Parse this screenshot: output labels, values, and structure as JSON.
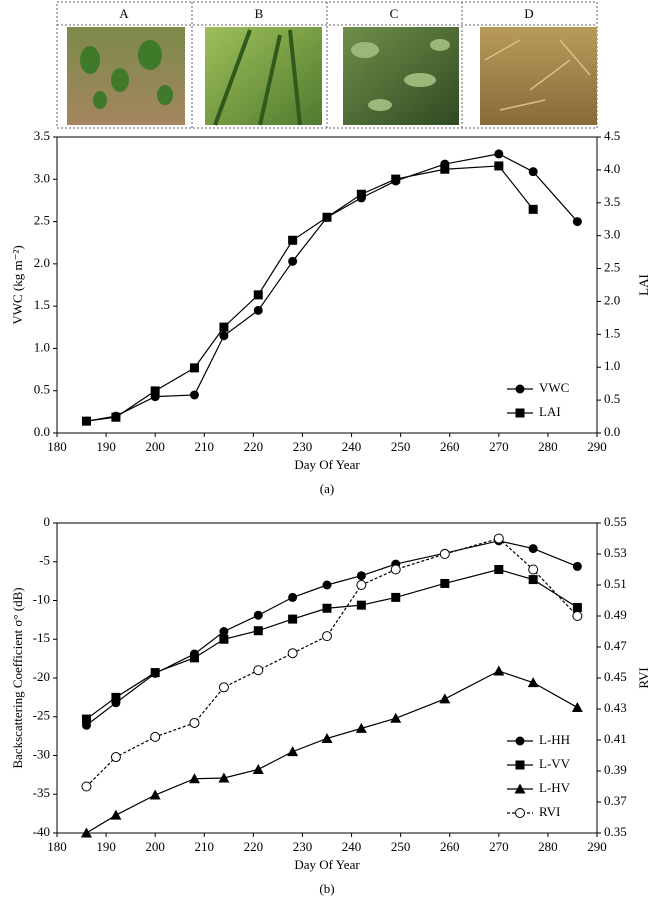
{
  "photo_panels": {
    "labels": [
      "A",
      "B",
      "C",
      "D"
    ]
  },
  "chart_data": [
    {
      "type": "line",
      "caption": "(a)",
      "x_label": "Day Of Year",
      "y_label": "VWC (kg m⁻²)",
      "y2_label": "LAI",
      "x": [
        186,
        192,
        200,
        208,
        214,
        221,
        228,
        235,
        242,
        249,
        259,
        270,
        277,
        286
      ],
      "xlim": [
        180,
        290
      ],
      "xticks": [
        180,
        190,
        200,
        210,
        220,
        230,
        240,
        250,
        260,
        270,
        280,
        290
      ],
      "ylim": [
        0,
        3.5
      ],
      "yticks": [
        {
          "value": 0,
          "label": "0.0"
        },
        0.5,
        {
          "value": 1,
          "label": "1.0"
        },
        1.5,
        {
          "value": 2,
          "label": "2.0"
        },
        2.5,
        {
          "value": 3,
          "label": "3.0"
        },
        3.5
      ],
      "y2lim": [
        0,
        4.5
      ],
      "y2ticks": [
        {
          "value": 0,
          "label": "0.0"
        },
        0.5,
        {
          "value": 1,
          "label": "1.0"
        },
        1.5,
        {
          "value": 2,
          "label": "2.0"
        },
        2.5,
        {
          "value": 3,
          "label": "3.0"
        },
        3.5,
        {
          "value": 4,
          "label": "4.0"
        },
        4.5
      ],
      "legend": "lower right",
      "series": [
        {
          "name": "VWC",
          "color": "#000000",
          "marker": "circle",
          "values": [
            0.14,
            0.2,
            0.43,
            0.45,
            1.15,
            1.45,
            2.03,
            2.55,
            2.78,
            2.98,
            3.18,
            3.3,
            3.09,
            2.5
          ]
        },
        {
          "name": "LAI",
          "color": "#000000",
          "marker": "square",
          "axis": "y2",
          "values": [
            0.18,
            0.24,
            0.64,
            0.99,
            1.61,
            2.1,
            2.93,
            3.28,
            3.63,
            3.86,
            4.01,
            4.06,
            3.4,
            null
          ]
        }
      ]
    },
    {
      "type": "line",
      "caption": "(b)",
      "x_label": "Day Of Year",
      "y_label": "Backscattering  Coefficient σ° (dB)",
      "y2_label": "RVI",
      "x": [
        186,
        192,
        200,
        208,
        214,
        221,
        228,
        235,
        242,
        249,
        259,
        270,
        277,
        286
      ],
      "xlim": [
        180,
        290
      ],
      "xticks": [
        180,
        190,
        200,
        210,
        220,
        230,
        240,
        250,
        260,
        270,
        280,
        290
      ],
      "ylim": [
        -40,
        0
      ],
      "yticks": [
        -40,
        -35,
        -30,
        -25,
        -20,
        -15,
        -10,
        -5,
        0
      ],
      "y2lim": [
        0.35,
        0.55
      ],
      "y2ticks": [
        0.35,
        0.37,
        0.39,
        0.41,
        0.43,
        0.45,
        0.47,
        0.49,
        0.51,
        0.53,
        0.55
      ],
      "legend": "lower right",
      "series": [
        {
          "name": "L-HH",
          "color": "#000000",
          "marker": "circle",
          "values": [
            -26.1,
            -23.2,
            -19.4,
            -16.9,
            -14,
            -11.9,
            -9.6,
            -8,
            -6.8,
            -5.3,
            -3.9,
            -2.3,
            -3.3,
            -5.6
          ]
        },
        {
          "name": "L-VV",
          "color": "#000000",
          "marker": "square",
          "values": [
            -25.3,
            -22.5,
            -19.3,
            -17.4,
            -15,
            -13.9,
            -12.4,
            -11,
            -10.6,
            -9.6,
            -7.8,
            -6,
            -7.3,
            -10.9
          ]
        },
        {
          "name": "L-HV",
          "color": "#000000",
          "marker": "triangle",
          "values": [
            -40,
            -37.7,
            -35.1,
            -33,
            -32.9,
            -31.8,
            -29.5,
            -27.8,
            -26.5,
            -25.2,
            -22.7,
            -19.1,
            -20.6,
            -23.8
          ]
        },
        {
          "name": "RVI",
          "color": "#000000",
          "marker": "open-circle",
          "dashed": true,
          "axis": "y2",
          "values": [
            0.38,
            0.399,
            0.412,
            0.421,
            0.444,
            0.455,
            0.466,
            0.477,
            0.51,
            0.52,
            0.53,
            0.54,
            0.52,
            0.49
          ]
        }
      ]
    }
  ]
}
